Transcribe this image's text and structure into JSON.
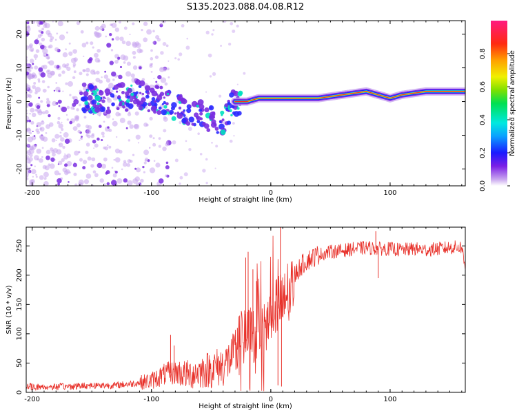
{
  "title": "S135.2023.088.04.08.R12",
  "colors": {
    "snr_line": "#e8312a",
    "frame": "#000000",
    "point_faint": "#c9a6ef",
    "point_mid": "#7a2ee0",
    "point_high": "#00e0c0",
    "ridge": "#ff2a1a"
  },
  "chart_data": [
    {
      "name": "spectrogram",
      "type": "heatmap",
      "xlabel": "Height of straight line (km)",
      "ylabel": "Frequency (Hz)",
      "xlim": [
        -205,
        163
      ],
      "ylim": [
        -25,
        24
      ],
      "xticks": [
        -200,
        -100,
        0,
        100
      ],
      "yticks": [
        -20,
        -10,
        0,
        10,
        20
      ],
      "xtick_labels": [
        "-200",
        "-100",
        "0",
        "100"
      ],
      "ytick_labels": [
        "-20",
        "-10",
        "0",
        "10",
        "20"
      ],
      "colorbar": {
        "label": "Normalized spectral amplitude",
        "range": [
          0,
          1
        ],
        "ticks": [
          0.0,
          0.2,
          0.4,
          0.6,
          0.8
        ],
        "tick_labels": [
          "0.0",
          "0.2",
          "0.4",
          "0.6",
          "0.8"
        ]
      },
      "ridge_track": {
        "x": [
          -155,
          -130,
          -110,
          -90,
          -75,
          -60,
          -45,
          -38,
          -30,
          -20,
          -10,
          0,
          20,
          40,
          60,
          80,
          90,
          100,
          110,
          130,
          163
        ],
        "y": [
          1,
          1,
          2,
          0,
          -2,
          -4,
          -6,
          -5,
          0,
          0,
          1,
          1,
          1,
          1,
          2,
          3,
          2,
          1,
          2,
          3,
          3
        ]
      }
    },
    {
      "name": "snr",
      "type": "line",
      "xlabel": "Height of straight line (km)",
      "ylabel": "SNR (10 * v/v)",
      "xlim": [
        -205,
        163
      ],
      "ylim": [
        0,
        282
      ],
      "xticks": [
        -200,
        -100,
        0,
        100
      ],
      "yticks": [
        0,
        50,
        100,
        150,
        200,
        250
      ],
      "xtick_labels": [
        "-200",
        "-100",
        "0",
        "100"
      ],
      "ytick_labels": [
        "0",
        "50",
        "100",
        "150",
        "200",
        "250"
      ],
      "series": [
        {
          "name": "SNR",
          "x": [
            -205,
            -190,
            -170,
            -150,
            -130,
            -115,
            -100,
            -90,
            -80,
            -70,
            -60,
            -50,
            -40,
            -30,
            -25,
            -20,
            -15,
            -10,
            -5,
            0,
            5,
            10,
            15,
            20,
            25,
            30,
            35,
            40,
            50,
            60,
            70,
            80,
            90,
            100,
            110,
            120,
            130,
            140,
            150,
            160,
            163
          ],
          "values": [
            10,
            9,
            10,
            12,
            12,
            15,
            20,
            30,
            35,
            30,
            35,
            40,
            45,
            65,
            85,
            90,
            100,
            105,
            100,
            145,
            150,
            150,
            160,
            200,
            215,
            225,
            230,
            235,
            240,
            242,
            245,
            247,
            245,
            245,
            243,
            245,
            243,
            245,
            247,
            248,
            210
          ]
        }
      ],
      "spikes": [
        {
          "x": -84,
          "value": 98
        },
        {
          "x": -81,
          "value": 80
        },
        {
          "x": -28,
          "value": 110
        },
        {
          "x": -21,
          "value": 230
        },
        {
          "x": -19,
          "value": 240
        },
        {
          "x": -15,
          "value": 210
        },
        {
          "x": -12,
          "value": 190
        },
        {
          "x": 6,
          "value": 12
        },
        {
          "x": 8,
          "value": 282
        },
        {
          "x": 9,
          "value": 10
        },
        {
          "x": 90,
          "value": 195
        },
        {
          "x": 88,
          "value": 275
        }
      ]
    }
  ]
}
